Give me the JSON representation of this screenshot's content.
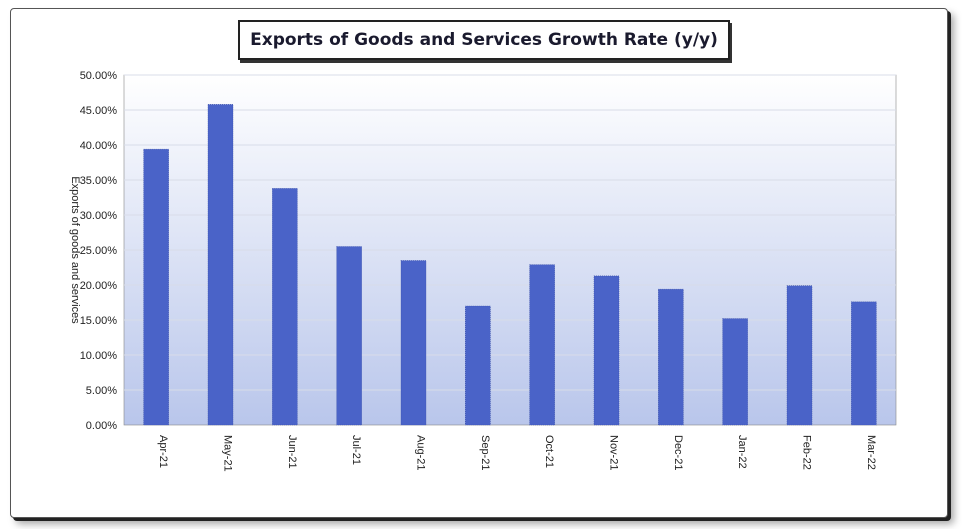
{
  "chart_data": {
    "type": "bar",
    "title": "Exports of Goods and Services Growth Rate (y/y)",
    "ylabel": "Exports of goods and services",
    "xlabel": "",
    "categories": [
      "Apr-21",
      "May-21",
      "Jun-21",
      "Jul-21",
      "Aug-21",
      "Sep-21",
      "Oct-21",
      "Nov-21",
      "Dec-21",
      "Jan-22",
      "Feb-22",
      "Mar-22"
    ],
    "values": [
      39.4,
      45.8,
      33.8,
      25.5,
      23.5,
      17.0,
      22.9,
      21.3,
      19.4,
      15.2,
      19.9,
      17.6
    ],
    "yticks": [
      "0.00%",
      "5.00%",
      "10.00%",
      "15.00%",
      "20.00%",
      "25.00%",
      "30.00%",
      "35.00%",
      "40.00%",
      "45.00%",
      "50.00%"
    ],
    "ylim": [
      0,
      50
    ],
    "grid": true,
    "bar_color": "#4a63c8",
    "plot_background": [
      "#ffffff",
      "#b9c6eb"
    ]
  }
}
